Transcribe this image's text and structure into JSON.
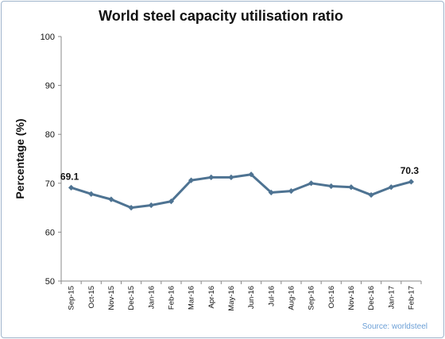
{
  "chart_data": {
    "type": "line",
    "title": "World steel capacity utilisation ratio",
    "ylabel": "Percentage (%)",
    "xlabel": "",
    "ylim": [
      50,
      100
    ],
    "yticks": [
      "50",
      "60",
      "70",
      "80",
      "90",
      "100"
    ],
    "grid": false,
    "categories": [
      "Sep-15",
      "Oct-15",
      "Nov-15",
      "Dec-15",
      "Jan-16",
      "Feb-16",
      "Mar-16",
      "Apr-16",
      "May-16",
      "Jun-16",
      "Jul-16",
      "Aug-16",
      "Sep-16",
      "Oct-16",
      "Nov-16",
      "Dec-16",
      "Jan-17",
      "Feb-17"
    ],
    "series": [
      {
        "values": [
          69.1,
          67.8,
          66.7,
          65.0,
          65.5,
          66.3,
          70.6,
          71.2,
          71.2,
          71.8,
          68.1,
          68.4,
          70.0,
          69.4,
          69.2,
          67.6,
          69.2,
          70.3
        ],
        "color": "#4e7392"
      }
    ],
    "data_labels": [
      {
        "index": 0,
        "text": "69.1"
      },
      {
        "index": 17,
        "text": "70.3"
      }
    ],
    "source": "Source: worldsteel"
  }
}
